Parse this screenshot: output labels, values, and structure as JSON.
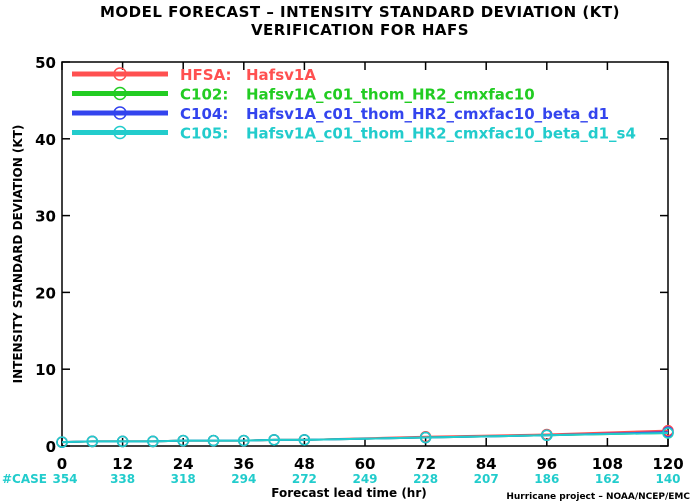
{
  "chart_data": {
    "type": "line",
    "title": "MODEL FORECAST – INTENSITY STANDARD DEVIATION (KT)",
    "subtitle": "VERIFICATION FOR HAFS",
    "xlabel": "Forecast lead time (hr)",
    "ylabel": "INTENSITY STANDARD DEVIATION (KT)",
    "xlim": [
      0,
      120
    ],
    "ylim": [
      0,
      50
    ],
    "x_ticks": [
      "0",
      "12",
      "24",
      "36",
      "48",
      "60",
      "72",
      "84",
      "96",
      "108",
      "120"
    ],
    "y_ticks": [
      "0",
      "10",
      "20",
      "30",
      "40",
      "50"
    ],
    "x": [
      0,
      6,
      12,
      18,
      24,
      30,
      36,
      42,
      48,
      72,
      96,
      120
    ],
    "series": [
      {
        "name": "HFSA:",
        "label": "Hafsv1A",
        "color": "#ff5050",
        "values": [
          0.5,
          0.6,
          0.6,
          0.6,
          0.7,
          0.7,
          0.7,
          0.8,
          0.8,
          1.2,
          1.5,
          2.0
        ]
      },
      {
        "name": "C102:",
        "label": "Hafsv1A_c01_thom_HR2_cmxfac10",
        "color": "#22cc22",
        "values": [
          0.5,
          0.6,
          0.6,
          0.6,
          0.7,
          0.7,
          0.7,
          0.8,
          0.8,
          1.1,
          1.4,
          1.7
        ]
      },
      {
        "name": "C104:",
        "label": "Hafsv1A_c01_thom_HR2_cmxfac10_beta_d1",
        "color": "#3344ee",
        "values": [
          0.5,
          0.6,
          0.6,
          0.6,
          0.7,
          0.7,
          0.7,
          0.8,
          0.8,
          1.1,
          1.4,
          1.8
        ]
      },
      {
        "name": "C105:",
        "label": "Hafsv1A_c01_thom_HR2_cmxfac10_beta_d1_s4",
        "color": "#22cccc",
        "values": [
          0.5,
          0.6,
          0.6,
          0.6,
          0.7,
          0.7,
          0.7,
          0.8,
          0.8,
          1.1,
          1.4,
          1.7
        ]
      }
    ],
    "case_label": "#CASE",
    "case_color": "#22cccc",
    "cases": [
      {
        "x": 0,
        "n": "354"
      },
      {
        "x": 12,
        "n": "338"
      },
      {
        "x": 24,
        "n": "318"
      },
      {
        "x": 36,
        "n": "294"
      },
      {
        "x": 48,
        "n": "272"
      },
      {
        "x": 60,
        "n": "249"
      },
      {
        "x": 72,
        "n": "228"
      },
      {
        "x": 84,
        "n": "207"
      },
      {
        "x": 96,
        "n": "186"
      },
      {
        "x": 108,
        "n": "162"
      },
      {
        "x": 120,
        "n": "140"
      }
    ],
    "legend_position": "top-left",
    "grid": false,
    "credit": "Hurricane project – NOAA/NCEP/EMC"
  }
}
